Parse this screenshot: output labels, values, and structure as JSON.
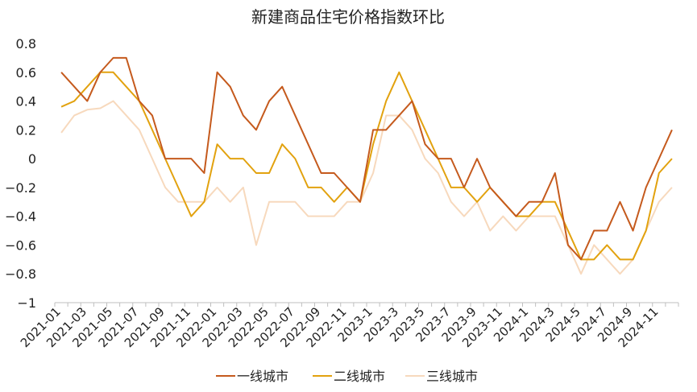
{
  "chart_data": {
    "type": "line",
    "title": "新建商品住宅价格指数环比",
    "xlabel": "",
    "ylabel": "",
    "ylim": [
      -1,
      0.8
    ],
    "yticks": [
      "0.8",
      "0.6",
      "0.4",
      "0.2",
      "0",
      "−0.2",
      "−0.4",
      "−0.6",
      "−0.8",
      "−1"
    ],
    "ytick_values": [
      0.8,
      0.6,
      0.4,
      0.2,
      0,
      -0.2,
      -0.4,
      -0.6,
      -0.8,
      -1
    ],
    "grid": false,
    "legend_position": "bottom",
    "x": [
      "2021-01",
      "2021-02",
      "2021-03",
      "2021-04",
      "2021-05",
      "2021-06",
      "2021-07",
      "2021-08",
      "2021-09",
      "2021-10",
      "2021-11",
      "2021-12",
      "2022-01",
      "2022-02",
      "2022-03",
      "2022-04",
      "2022-05",
      "2022-06",
      "2022-07",
      "2022-08",
      "2022-09",
      "2022-10",
      "2022-11",
      "2022-12",
      "2023-1",
      "2023-2",
      "2023-3",
      "2023-4",
      "2023-5",
      "2023-6",
      "2023-7",
      "2023-8",
      "2023-9",
      "2023-10",
      "2023-11",
      "2023-12",
      "2024-1",
      "2024-2",
      "2024-3",
      "2024-4",
      "2024-5",
      "2024-6",
      "2024-7",
      "2024-8",
      "2024-9",
      "2024-10",
      "2024-11",
      "2024-12"
    ],
    "xtick_labels": [
      "2021-01",
      "2021-03",
      "2021-05",
      "2021-07",
      "2021-09",
      "2021-11",
      "2022-01",
      "2022-03",
      "2022-05",
      "2022-07",
      "2022-09",
      "2022-11",
      "2023-1",
      "2023-3",
      "2023-5",
      "2023-7",
      "2023-9",
      "2023-11",
      "2024-1",
      "2024-3",
      "2024-5",
      "2024-7",
      "2024-9",
      "2024-11"
    ],
    "series": [
      {
        "name": "一线城市",
        "color": "#C55A1D",
        "values": [
          0.6,
          0.5,
          0.4,
          0.6,
          0.7,
          0.7,
          0.4,
          0.3,
          0.0,
          0.0,
          0.0,
          -0.1,
          0.6,
          0.5,
          0.3,
          0.2,
          0.4,
          0.5,
          0.3,
          0.1,
          -0.1,
          -0.1,
          -0.2,
          -0.3,
          0.2,
          0.2,
          0.3,
          0.4,
          0.1,
          0.0,
          0.0,
          -0.2,
          0.0,
          -0.2,
          -0.3,
          -0.4,
          -0.3,
          -0.3,
          -0.1,
          -0.6,
          -0.7,
          -0.5,
          -0.5,
          -0.3,
          -0.5,
          -0.2,
          0.0,
          0.2
        ]
      },
      {
        "name": "二线城市",
        "color": "#E2A20F",
        "values": [
          0.36,
          0.4,
          0.5,
          0.6,
          0.6,
          0.5,
          0.4,
          0.2,
          0.0,
          -0.2,
          -0.4,
          -0.3,
          0.1,
          0.0,
          0.0,
          -0.1,
          -0.1,
          0.1,
          0.0,
          -0.2,
          -0.2,
          -0.3,
          -0.2,
          -0.3,
          0.1,
          0.4,
          0.6,
          0.4,
          0.2,
          0.0,
          -0.2,
          -0.2,
          -0.3,
          -0.2,
          -0.3,
          -0.4,
          -0.4,
          -0.3,
          -0.3,
          -0.5,
          -0.7,
          -0.7,
          -0.6,
          -0.7,
          -0.7,
          -0.5,
          -0.1,
          0.0
        ]
      },
      {
        "name": "三线城市",
        "color": "#F7D9BD",
        "values": [
          0.18,
          0.3,
          0.34,
          0.35,
          0.4,
          0.3,
          0.2,
          0.0,
          -0.2,
          -0.3,
          -0.3,
          -0.3,
          -0.2,
          -0.3,
          -0.2,
          -0.6,
          -0.3,
          -0.3,
          -0.3,
          -0.4,
          -0.4,
          -0.4,
          -0.3,
          -0.3,
          -0.1,
          0.3,
          0.3,
          0.2,
          0.0,
          -0.1,
          -0.3,
          -0.4,
          -0.3,
          -0.5,
          -0.4,
          -0.5,
          -0.4,
          -0.4,
          -0.4,
          -0.6,
          -0.8,
          -0.6,
          -0.7,
          -0.8,
          -0.7,
          -0.5,
          -0.3,
          -0.2
        ]
      }
    ]
  }
}
